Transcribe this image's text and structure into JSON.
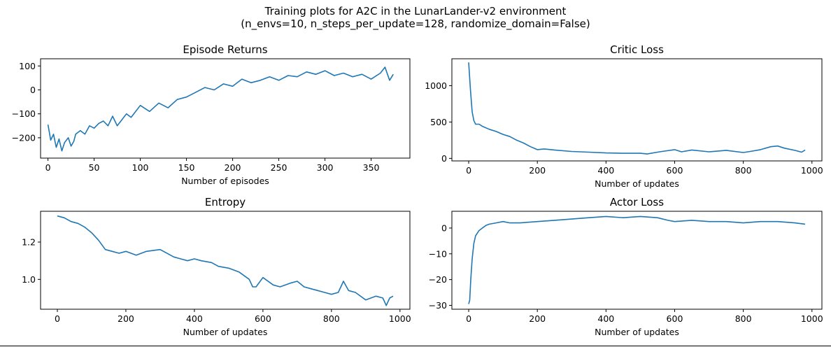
{
  "figure": {
    "suptitle_line1": "Training plots for A2C in the LunarLander-v2 environment",
    "suptitle_line2": "(n_envs=10, n_steps_per_update=128, randomize_domain=False)",
    "line_color": "#1f77b4"
  },
  "chart_data": [
    {
      "type": "line",
      "title": "Episode Returns",
      "xlabel": "Number of episodes",
      "ylabel": "",
      "xlim": [
        -8,
        392
      ],
      "ylim": [
        -285,
        130
      ],
      "xticks": [
        0,
        50,
        100,
        150,
        200,
        250,
        300,
        350
      ],
      "yticks": [
        -200,
        -100,
        0,
        100
      ],
      "xtick_labels": [
        "0",
        "50",
        "100",
        "150",
        "200",
        "250",
        "300",
        "350"
      ],
      "ytick_labels": [
        "−200",
        "−100",
        "0",
        "100"
      ],
      "x": [
        0,
        3,
        6,
        9,
        12,
        15,
        18,
        22,
        25,
        28,
        30,
        35,
        40,
        45,
        50,
        55,
        60,
        65,
        70,
        75,
        80,
        85,
        90,
        95,
        100,
        110,
        120,
        130,
        140,
        150,
        160,
        170,
        180,
        190,
        200,
        210,
        220,
        230,
        240,
        250,
        260,
        270,
        280,
        290,
        300,
        310,
        320,
        330,
        340,
        350,
        360,
        365,
        370,
        374
      ],
      "y": [
        -145,
        -210,
        -185,
        -240,
        -205,
        -255,
        -220,
        -200,
        -235,
        -215,
        -185,
        -170,
        -185,
        -150,
        -160,
        -140,
        -130,
        -150,
        -110,
        -150,
        -125,
        -100,
        -115,
        -90,
        -65,
        -90,
        -55,
        -75,
        -40,
        -30,
        -10,
        10,
        0,
        25,
        15,
        45,
        30,
        40,
        55,
        40,
        60,
        55,
        75,
        65,
        80,
        60,
        70,
        55,
        65,
        45,
        70,
        95,
        40,
        65
      ]
    },
    {
      "type": "line",
      "title": "Critic Loss",
      "xlabel": "Number of updates",
      "ylabel": "",
      "xlim": [
        -49,
        1029
      ],
      "ylim": [
        -35,
        1370
      ],
      "xticks": [
        0,
        200,
        400,
        600,
        800,
        1000
      ],
      "yticks": [
        0,
        500,
        1000
      ],
      "xtick_labels": [
        "0",
        "200",
        "400",
        "600",
        "800",
        "1000"
      ],
      "ytick_labels": [
        "0",
        "500",
        "1000"
      ],
      "x": [
        0,
        5,
        10,
        15,
        20,
        30,
        40,
        60,
        80,
        100,
        120,
        140,
        160,
        180,
        200,
        220,
        250,
        300,
        350,
        400,
        450,
        500,
        520,
        550,
        570,
        600,
        620,
        650,
        700,
        750,
        800,
        820,
        850,
        880,
        900,
        920,
        950,
        970,
        980
      ],
      "y": [
        1320,
        950,
        640,
        520,
        470,
        470,
        440,
        400,
        370,
        330,
        300,
        250,
        210,
        160,
        120,
        130,
        115,
        95,
        85,
        75,
        70,
        70,
        60,
        85,
        100,
        120,
        90,
        115,
        90,
        110,
        80,
        95,
        120,
        160,
        170,
        140,
        110,
        85,
        115
      ]
    },
    {
      "type": "line",
      "title": "Entropy",
      "xlabel": "Number of updates",
      "ylabel": "",
      "xlim": [
        -49,
        1029
      ],
      "ylim": [
        0.84,
        1.365
      ],
      "xticks": [
        0,
        200,
        400,
        600,
        800,
        1000
      ],
      "yticks": [
        1.0,
        1.2
      ],
      "xtick_labels": [
        "0",
        "200",
        "400",
        "600",
        "800",
        "1000"
      ],
      "ytick_labels": [
        "1.0",
        "1.2"
      ],
      "x": [
        0,
        20,
        40,
        60,
        80,
        100,
        120,
        140,
        160,
        180,
        200,
        230,
        260,
        300,
        340,
        360,
        380,
        400,
        420,
        450,
        470,
        500,
        530,
        560,
        570,
        580,
        600,
        630,
        650,
        680,
        700,
        720,
        740,
        760,
        780,
        800,
        820,
        835,
        850,
        870,
        900,
        930,
        950,
        960,
        970,
        980
      ],
      "y": [
        1.34,
        1.33,
        1.31,
        1.3,
        1.28,
        1.25,
        1.21,
        1.16,
        1.15,
        1.14,
        1.15,
        1.13,
        1.15,
        1.16,
        1.12,
        1.11,
        1.1,
        1.11,
        1.1,
        1.09,
        1.07,
        1.06,
        1.04,
        1.0,
        0.96,
        0.96,
        1.01,
        0.97,
        0.96,
        0.98,
        0.99,
        0.96,
        0.95,
        0.94,
        0.93,
        0.92,
        0.93,
        0.99,
        0.94,
        0.93,
        0.89,
        0.91,
        0.9,
        0.86,
        0.9,
        0.91
      ]
    },
    {
      "type": "line",
      "title": "Actor Loss",
      "xlabel": "Number of updates",
      "ylabel": "",
      "xlim": [
        -49,
        1029
      ],
      "ylim": [
        -31.5,
        6.5
      ],
      "xticks": [
        0,
        200,
        400,
        600,
        800,
        1000
      ],
      "yticks": [
        -30,
        -20,
        -10,
        0
      ],
      "xtick_labels": [
        "0",
        "200",
        "400",
        "600",
        "800",
        "1000"
      ],
      "ytick_labels": [
        "−30",
        "−20",
        "−10",
        "0"
      ],
      "x": [
        0,
        3,
        6,
        10,
        15,
        20,
        30,
        40,
        50,
        60,
        80,
        100,
        120,
        150,
        200,
        250,
        300,
        350,
        400,
        450,
        500,
        550,
        580,
        600,
        650,
        700,
        750,
        800,
        850,
        900,
        950,
        980
      ],
      "y": [
        -29.5,
        -28,
        -20,
        -12,
        -6,
        -3,
        -1,
        0,
        1,
        1.5,
        2,
        2.5,
        2,
        2,
        2.5,
        3,
        3.5,
        4,
        4.5,
        4,
        4.5,
        4,
        3,
        2.5,
        3,
        2.5,
        2.5,
        2,
        2.5,
        2.5,
        2,
        1.5
      ]
    }
  ]
}
